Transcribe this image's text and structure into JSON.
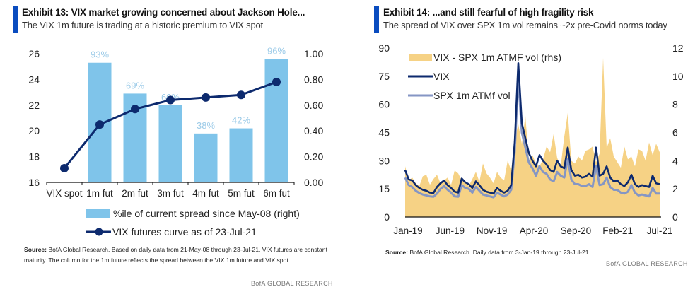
{
  "left": {
    "title": "Exhibit 13: VIX market growing concerned about Jackson Hole...",
    "subtitle": "The VIX 1m future is trading at a historic premium to VIX spot",
    "source_label": "Source:",
    "source_text": "BofA Global Research.  Based on daily data from 21-May-08 through 23-Jul-21.  VIX futures are constant maturity.  The column for the 1m future reflects the spread between the VIX 1m future and VIX spot",
    "brand": "BofA GLOBAL RESEARCH"
  },
  "right": {
    "title": "Exhibit 14: ...and still fearful of high fragility risk",
    "subtitle": "The spread of VIX over SPX 1m vol remains ~2x pre-Covid norms today",
    "source_label": "Source:",
    "source_text": "BofA Global Research.  Daily data from 3-Jan-19 through 23-Jul-21.",
    "brand": "BofA GLOBAL RESEARCH"
  },
  "colors": {
    "bar": "#7fc4ea",
    "bar_label": "#9ccbe8",
    "line_dark": "#0d2a6e",
    "line_grey": "#8596c4",
    "area": "#f6d285",
    "accent": "#0a4cbf"
  },
  "chart_data": [
    {
      "type": "bar",
      "title": "Exhibit 13: VIX market growing concerned about Jackson Hole...",
      "categories": [
        "VIX spot",
        "1m fut",
        "2m fut",
        "3m fut",
        "4m fut",
        "5m fut",
        "6m fut"
      ],
      "series": [
        {
          "name": "%ile of current spread since May-08 (right)",
          "type": "bar",
          "axis": "right",
          "values": [
            null,
            0.93,
            0.69,
            0.6,
            0.38,
            0.42,
            0.96
          ],
          "labels": [
            "",
            "93%",
            "69%",
            "60%",
            "38%",
            "42%",
            "96%"
          ]
        },
        {
          "name": "VIX futures curve as of 23-Jul-21",
          "type": "line",
          "axis": "left",
          "values": [
            17.1,
            20.5,
            21.7,
            22.4,
            22.6,
            22.8,
            23.8
          ]
        }
      ],
      "ylim_left": [
        16,
        26
      ],
      "yticks_left": [
        "16",
        "18",
        "20",
        "22",
        "24",
        "26"
      ],
      "ylim_right": [
        0,
        1
      ],
      "yticks_right": [
        "0.00",
        "0.20",
        "0.40",
        "0.60",
        "0.80",
        "1.00"
      ],
      "legend_position": "bottom",
      "grid": false
    },
    {
      "type": "area",
      "title": "Exhibit 14: ...and still fearful of high fragility risk",
      "xticks": [
        "Jan-19",
        "Jun-19",
        "Nov-19",
        "Apr-20",
        "Sep-20",
        "Feb-21",
        "Jul-21"
      ],
      "x_range": [
        "2019-01-03",
        "2021-07-23"
      ],
      "ylim_left": [
        0,
        90
      ],
      "yticks_left": [
        "0",
        "15",
        "30",
        "45",
        "60",
        "75",
        "90"
      ],
      "ylim_right": [
        0,
        12
      ],
      "yticks_right": [
        "0",
        "2",
        "4",
        "6",
        "8",
        "10",
        "12"
      ],
      "legend_position": "top-left",
      "grid": false,
      "series": [
        {
          "name": "VIX - SPX 1m ATMF vol (rhs)",
          "type": "area",
          "axis": "right",
          "values": [
            3.6,
            2.6,
            2.8,
            2.4,
            2.2,
            2.9,
            3.0,
            2.3,
            2.7,
            3.0,
            2.4,
            2.6,
            2.8,
            2.3,
            3.3,
            3.1,
            2.6,
            2.5,
            2.2,
            2.7,
            3.2,
            2.5,
            3.8,
            3.1,
            2.8,
            2.4,
            3.2,
            2.8,
            2.6,
            4.0,
            3.3,
            5.5,
            6.6,
            5.2,
            7.2,
            4.0,
            4.4,
            3.8,
            3.6,
            4.1,
            5.0,
            4.6,
            5.9,
            4.2,
            3.6,
            5.7,
            7.4,
            4.0,
            3.8,
            4.3,
            4.0,
            4.7,
            4.8,
            5.0,
            3.9,
            4.5,
            11.3,
            4.9,
            5.6,
            4.3,
            3.9,
            3.5,
            5.0,
            4.1,
            4.3,
            3.6,
            4.8,
            4.7,
            4.0,
            5.3,
            4.4,
            5.2,
            4.6
          ]
        },
        {
          "name": "VIX",
          "type": "line",
          "axis": "left",
          "values": [
            25.0,
            20.0,
            19.5,
            17.0,
            15.5,
            14.5,
            14.0,
            13.0,
            12.8,
            16.0,
            18.0,
            19.5,
            17.0,
            15.5,
            13.5,
            13.0,
            20.5,
            18.5,
            17.5,
            15.5,
            19.0,
            17.0,
            14.5,
            13.5,
            13.0,
            12.5,
            15.5,
            14.0,
            13.0,
            14.0,
            17.0,
            40.0,
            82.0,
            50.0,
            42.0,
            34.0,
            30.0,
            27.0,
            33.0,
            30.0,
            28.0,
            25.0,
            24.0,
            30.0,
            27.0,
            26.0,
            37.0,
            25.0,
            22.0,
            22.5,
            21.0,
            21.5,
            23.0,
            21.5,
            37.0,
            22.0,
            23.0,
            27.0,
            21.0,
            19.0,
            19.5,
            17.5,
            16.5,
            18.5,
            22.5,
            17.5,
            16.0,
            17.0,
            16.5,
            16.0,
            22.0,
            18.0,
            17.5
          ]
        },
        {
          "name": "SPX 1m ATMf vol",
          "type": "line",
          "axis": "left",
          "values": [
            21.0,
            17.0,
            16.0,
            14.0,
            12.8,
            12.0,
            11.5,
            11.0,
            10.8,
            12.5,
            15.0,
            16.5,
            14.5,
            13.0,
            11.0,
            10.8,
            17.0,
            15.5,
            15.0,
            13.0,
            16.0,
            14.0,
            12.0,
            11.5,
            11.0,
            10.5,
            13.0,
            12.0,
            11.0,
            12.0,
            14.5,
            35.0,
            74.0,
            45.0,
            37.0,
            29.0,
            26.0,
            22.0,
            27.0,
            24.0,
            23.0,
            20.0,
            19.0,
            24.0,
            22.0,
            21.0,
            31.0,
            20.0,
            17.5,
            17.5,
            16.5,
            16.5,
            17.5,
            16.0,
            27.0,
            17.0,
            17.5,
            21.0,
            16.0,
            14.5,
            14.5,
            13.0,
            12.5,
            13.5,
            17.0,
            13.0,
            11.5,
            12.0,
            11.5,
            11.0,
            15.5,
            12.5,
            12.5
          ]
        }
      ]
    }
  ]
}
